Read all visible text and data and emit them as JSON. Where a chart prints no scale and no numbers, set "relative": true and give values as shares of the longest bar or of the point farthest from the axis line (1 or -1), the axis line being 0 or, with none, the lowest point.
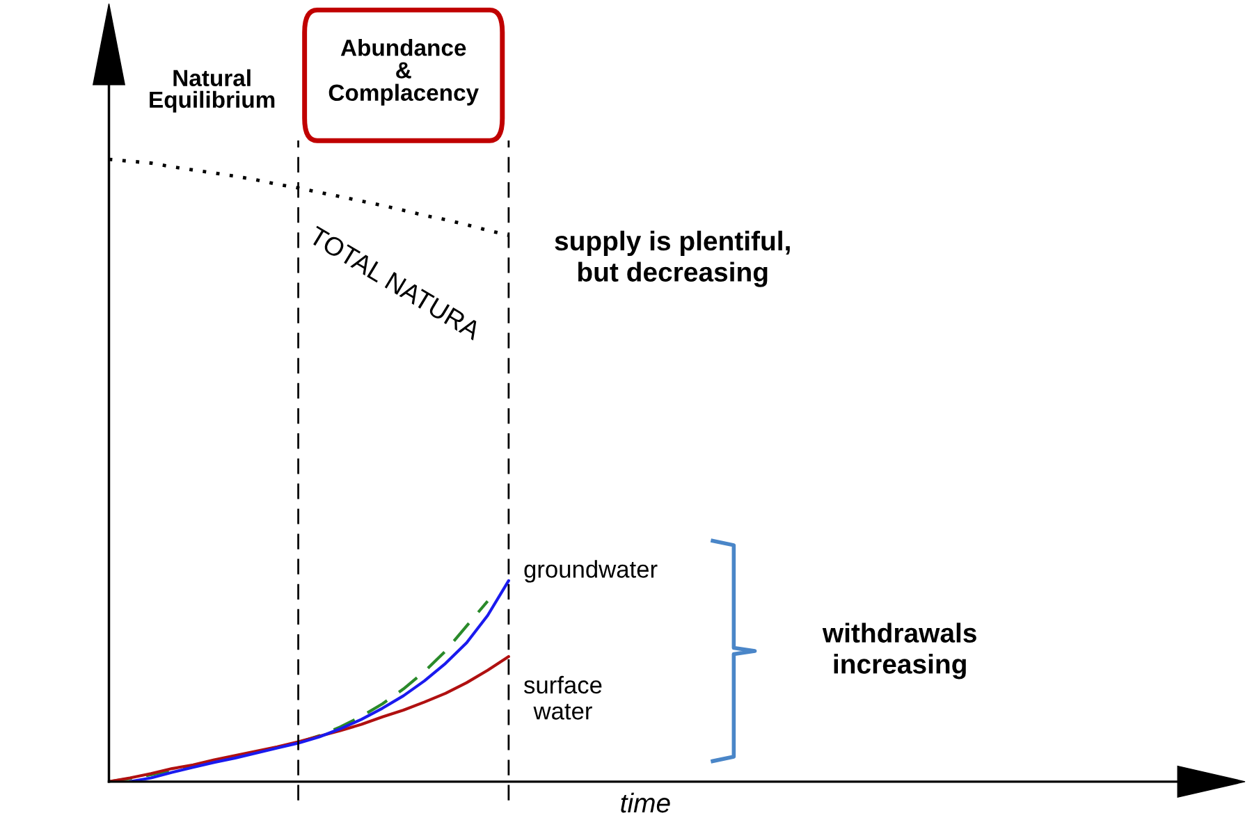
{
  "chart_data": {
    "type": "line",
    "relative": true,
    "xlabel": "time",
    "legend": false,
    "grid": false,
    "categories": [
      null,
      null,
      null,
      null,
      null,
      null,
      null,
      null,
      null,
      null,
      null,
      null,
      null,
      null,
      null,
      null,
      null,
      null,
      null,
      null,
      null,
      null,
      null,
      null,
      null,
      null,
      null,
      null,
      null,
      null,
      null,
      null,
      null,
      null,
      null,
      null,
      null,
      null,
      null,
      null,
      null,
      null,
      null,
      null,
      null,
      null,
      null,
      null,
      null,
      null,
      null,
      null
    ],
    "series": [
      {
        "color": "#000000",
        "line_style": "dotted",
        "values": [
          1.0,
          0.997,
          0.994,
          0.988,
          0.983,
          0.978,
          0.973,
          0.967,
          0.96,
          0.954,
          0.947,
          0.94,
          0.933,
          0.926,
          0.918,
          0.91,
          0.903,
          0.895,
          0.886,
          0.878,
          null,
          null,
          null,
          null,
          null,
          null,
          null,
          null,
          null,
          null,
          null,
          null,
          null,
          null,
          null,
          null,
          null,
          null,
          null,
          null,
          null,
          null,
          null,
          null,
          null,
          null,
          null,
          null,
          null,
          null,
          null,
          null
        ]
      },
      {
        "color": "#2a8a2a",
        "line_style": "dashed",
        "values": [
          0,
          0.005,
          0.011,
          0.018,
          0.025,
          null,
          null,
          null,
          null,
          0.063,
          0.074,
          0.088,
          0.105,
          0.125,
          0.149,
          0.177,
          0.21,
          0.25,
          0.29,
          null,
          null,
          null,
          null,
          null,
          null,
          null,
          null,
          null,
          null,
          null,
          null,
          null,
          null,
          null,
          null,
          null,
          null,
          null,
          null,
          null,
          null,
          null,
          null,
          null,
          null,
          null,
          null,
          null,
          null,
          null,
          null,
          null
        ]
      },
      {
        "name": "surface water",
        "color": "#b01010",
        "line_style": "solid",
        "values": [
          0,
          0.006,
          0.013,
          0.021,
          0.027,
          0.035,
          0.042,
          0.049,
          0.056,
          0.064,
          0.073,
          0.082,
          0.092,
          0.104,
          0.115,
          0.128,
          0.142,
          0.159,
          0.179,
          0.201,
          null,
          null,
          null,
          null,
          null,
          null,
          null,
          null,
          null,
          null,
          null,
          null,
          null,
          null,
          null,
          null,
          null,
          null,
          null,
          null,
          null,
          null,
          null,
          null,
          null,
          null,
          null,
          null,
          null,
          null,
          null,
          null
        ]
      },
      {
        "name": "groundwater",
        "color": "#1a1aee",
        "line_style": "solid",
        "values": [
          null,
          0,
          0.006,
          0.015,
          0.023,
          0.031,
          0.038,
          0.046,
          0.054,
          0.062,
          0.072,
          0.085,
          0.1,
          0.118,
          0.138,
          0.162,
          0.19,
          0.223,
          0.267,
          0.323,
          null,
          null,
          null,
          null,
          null,
          null,
          null,
          null,
          null,
          null,
          null,
          null,
          null,
          null,
          null,
          null,
          null,
          null,
          null,
          null,
          null,
          null,
          null,
          null,
          null,
          null,
          null,
          null,
          null,
          null,
          null,
          null
        ]
      }
    ],
    "annotations": [
      "Natural\nEquilibrium",
      "Abundance\n&\nComplacency",
      "TOTAL NATURA",
      "supply is plentiful,\nbut decreasing",
      "withdrawals\nincreasing"
    ]
  }
}
